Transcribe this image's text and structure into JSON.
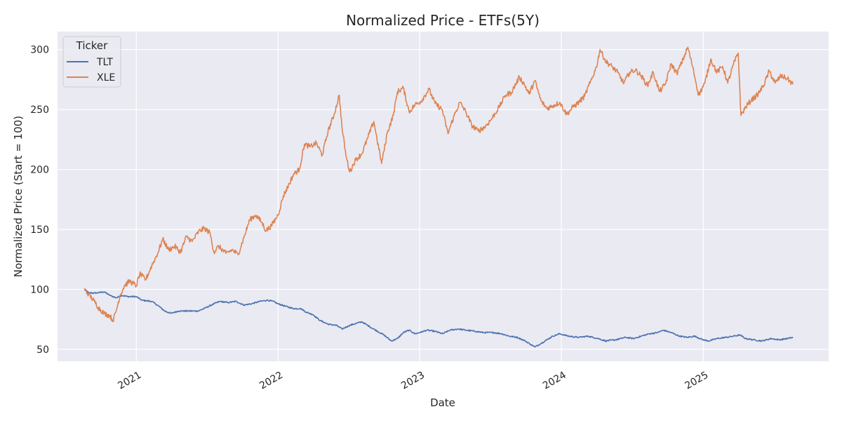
{
  "chart_data": {
    "type": "line",
    "title": "Normalized Price - ETFs(5Y)",
    "xlabel": "Date",
    "ylabel": "Normalized Price (Start = 100)",
    "xlim": [
      "2020-06-12",
      "2025-11-20"
    ],
    "ylim": [
      40,
      315
    ],
    "x_ticks": [
      "2021-01-01",
      "2022-01-01",
      "2023-01-01",
      "2024-01-01",
      "2025-01-01"
    ],
    "x_tick_labels": [
      "2021",
      "2022",
      "2023",
      "2024",
      "2025"
    ],
    "y_ticks": [
      50,
      100,
      150,
      200,
      250,
      300
    ],
    "y_tick_labels": [
      "50",
      "100",
      "150",
      "200",
      "250",
      "300"
    ],
    "grid": true,
    "legend": {
      "title": "Ticker",
      "placement": "top-left"
    },
    "background_color": "#eaeaf2",
    "series": [
      {
        "name": "TLT",
        "color": "#4c72b0",
        "points": [
          [
            "2020-08-20",
            100
          ],
          [
            "2020-09-01",
            97
          ],
          [
            "2020-09-20",
            97
          ],
          [
            "2020-10-10",
            98
          ],
          [
            "2020-10-25",
            95
          ],
          [
            "2020-11-10",
            93
          ],
          [
            "2020-11-25",
            95
          ],
          [
            "2020-12-10",
            94
          ],
          [
            "2021-01-01",
            94
          ],
          [
            "2021-01-15",
            91
          ],
          [
            "2021-02-10",
            90
          ],
          [
            "2021-02-28",
            86
          ],
          [
            "2021-03-15",
            82
          ],
          [
            "2021-03-31",
            80
          ],
          [
            "2021-04-20",
            82
          ],
          [
            "2021-05-15",
            82
          ],
          [
            "2021-06-10",
            82
          ],
          [
            "2021-07-01",
            85
          ],
          [
            "2021-07-20",
            88
          ],
          [
            "2021-08-05",
            90
          ],
          [
            "2021-08-25",
            89
          ],
          [
            "2021-09-15",
            90
          ],
          [
            "2021-10-05",
            87
          ],
          [
            "2021-10-25",
            88
          ],
          [
            "2021-11-15",
            90
          ],
          [
            "2021-12-05",
            91
          ],
          [
            "2021-12-20",
            90
          ],
          [
            "2022-01-01",
            88
          ],
          [
            "2022-01-20",
            86
          ],
          [
            "2022-02-10",
            84
          ],
          [
            "2022-03-01",
            84
          ],
          [
            "2022-03-15",
            81
          ],
          [
            "2022-04-01",
            79
          ],
          [
            "2022-04-20",
            74
          ],
          [
            "2022-05-10",
            71
          ],
          [
            "2022-06-01",
            70
          ],
          [
            "2022-06-15",
            67
          ],
          [
            "2022-07-05",
            70
          ],
          [
            "2022-07-25",
            72
          ],
          [
            "2022-08-05",
            73
          ],
          [
            "2022-08-25",
            69
          ],
          [
            "2022-09-15",
            65
          ],
          [
            "2022-10-01",
            62
          ],
          [
            "2022-10-20",
            57
          ],
          [
            "2022-11-05",
            59
          ],
          [
            "2022-11-20",
            64
          ],
          [
            "2022-12-05",
            66
          ],
          [
            "2022-12-20",
            63
          ],
          [
            "2023-01-01",
            64
          ],
          [
            "2023-01-20",
            66
          ],
          [
            "2023-02-10",
            65
          ],
          [
            "2023-03-01",
            63
          ],
          [
            "2023-03-20",
            66
          ],
          [
            "2023-04-10",
            67
          ],
          [
            "2023-05-01",
            66
          ],
          [
            "2023-05-25",
            65
          ],
          [
            "2023-06-15",
            64
          ],
          [
            "2023-07-10",
            64
          ],
          [
            "2023-08-01",
            63
          ],
          [
            "2023-08-20",
            61
          ],
          [
            "2023-09-10",
            60
          ],
          [
            "2023-09-30",
            57
          ],
          [
            "2023-10-15",
            54
          ],
          [
            "2023-10-25",
            52
          ],
          [
            "2023-11-10",
            55
          ],
          [
            "2023-11-25",
            58
          ],
          [
            "2023-12-10",
            61
          ],
          [
            "2023-12-28",
            63
          ],
          [
            "2024-01-20",
            61
          ],
          [
            "2024-02-15",
            60
          ],
          [
            "2024-03-10",
            61
          ],
          [
            "2024-04-05",
            59
          ],
          [
            "2024-04-25",
            57
          ],
          [
            "2024-05-20",
            58
          ],
          [
            "2024-06-15",
            60
          ],
          [
            "2024-07-05",
            59
          ],
          [
            "2024-07-25",
            61
          ],
          [
            "2024-08-15",
            63
          ],
          [
            "2024-09-05",
            64
          ],
          [
            "2024-09-20",
            66
          ],
          [
            "2024-10-10",
            64
          ],
          [
            "2024-11-01",
            61
          ],
          [
            "2024-11-20",
            60
          ],
          [
            "2024-12-10",
            61
          ],
          [
            "2024-12-31",
            58
          ],
          [
            "2025-01-15",
            57
          ],
          [
            "2025-02-05",
            59
          ],
          [
            "2025-02-28",
            60
          ],
          [
            "2025-03-20",
            61
          ],
          [
            "2025-04-05",
            62
          ],
          [
            "2025-04-20",
            59
          ],
          [
            "2025-05-10",
            58
          ],
          [
            "2025-06-01",
            57
          ],
          [
            "2025-06-25",
            59
          ],
          [
            "2025-07-15",
            58
          ],
          [
            "2025-08-05",
            59
          ],
          [
            "2025-08-20",
            60
          ]
        ]
      },
      {
        "name": "XLE",
        "color": "#dd8452",
        "points": [
          [
            "2020-08-20",
            100
          ],
          [
            "2020-08-31",
            96
          ],
          [
            "2020-09-15",
            90
          ],
          [
            "2020-09-25",
            85
          ],
          [
            "2020-10-10",
            80
          ],
          [
            "2020-10-25",
            78
          ],
          [
            "2020-11-02",
            74
          ],
          [
            "2020-11-10",
            82
          ],
          [
            "2020-11-20",
            95
          ],
          [
            "2020-12-01",
            103
          ],
          [
            "2020-12-15",
            107
          ],
          [
            "2021-01-01",
            103
          ],
          [
            "2021-01-10",
            113
          ],
          [
            "2021-01-25",
            108
          ],
          [
            "2021-02-10",
            120
          ],
          [
            "2021-02-25",
            130
          ],
          [
            "2021-03-10",
            142
          ],
          [
            "2021-03-25",
            133
          ],
          [
            "2021-04-10",
            136
          ],
          [
            "2021-04-25",
            131
          ],
          [
            "2021-05-10",
            144
          ],
          [
            "2021-05-25",
            140
          ],
          [
            "2021-06-10",
            148
          ],
          [
            "2021-06-25",
            151
          ],
          [
            "2021-07-10",
            147
          ],
          [
            "2021-07-20",
            131
          ],
          [
            "2021-08-01",
            136
          ],
          [
            "2021-08-20",
            130
          ],
          [
            "2021-09-05",
            133
          ],
          [
            "2021-09-20",
            129
          ],
          [
            "2021-10-05",
            143
          ],
          [
            "2021-10-20",
            158
          ],
          [
            "2021-11-05",
            162
          ],
          [
            "2021-11-20",
            156
          ],
          [
            "2021-12-01",
            149
          ],
          [
            "2021-12-15",
            153
          ],
          [
            "2022-01-01",
            162
          ],
          [
            "2022-01-15",
            178
          ],
          [
            "2022-01-30",
            188
          ],
          [
            "2022-02-10",
            196
          ],
          [
            "2022-02-25",
            200
          ],
          [
            "2022-03-10",
            221
          ],
          [
            "2022-03-25",
            219
          ],
          [
            "2022-04-10",
            222
          ],
          [
            "2022-04-25",
            212
          ],
          [
            "2022-05-10",
            232
          ],
          [
            "2022-05-25",
            245
          ],
          [
            "2022-06-08",
            262
          ],
          [
            "2022-06-15",
            235
          ],
          [
            "2022-06-25",
            212
          ],
          [
            "2022-07-05",
            198
          ],
          [
            "2022-07-20",
            208
          ],
          [
            "2022-08-05",
            213
          ],
          [
            "2022-08-20",
            226
          ],
          [
            "2022-09-05",
            240
          ],
          [
            "2022-09-25",
            205
          ],
          [
            "2022-10-10",
            231
          ],
          [
            "2022-10-25",
            245
          ],
          [
            "2022-11-05",
            265
          ],
          [
            "2022-11-20",
            268
          ],
          [
            "2022-12-05",
            248
          ],
          [
            "2022-12-20",
            254
          ],
          [
            "2023-01-05",
            257
          ],
          [
            "2023-01-25",
            267
          ],
          [
            "2023-02-10",
            255
          ],
          [
            "2023-02-28",
            250
          ],
          [
            "2023-03-15",
            230
          ],
          [
            "2023-03-31",
            245
          ],
          [
            "2023-04-15",
            256
          ],
          [
            "2023-04-30",
            248
          ],
          [
            "2023-05-15",
            237
          ],
          [
            "2023-06-01",
            232
          ],
          [
            "2023-06-20",
            236
          ],
          [
            "2023-07-05",
            242
          ],
          [
            "2023-07-25",
            252
          ],
          [
            "2023-08-10",
            262
          ],
          [
            "2023-08-25",
            264
          ],
          [
            "2023-09-15",
            277
          ],
          [
            "2023-09-28",
            271
          ],
          [
            "2023-10-10",
            263
          ],
          [
            "2023-10-25",
            274
          ],
          [
            "2023-11-10",
            257
          ],
          [
            "2023-11-25",
            251
          ],
          [
            "2023-12-10",
            253
          ],
          [
            "2023-12-28",
            256
          ],
          [
            "2024-01-15",
            246
          ],
          [
            "2024-01-31",
            252
          ],
          [
            "2024-02-15",
            256
          ],
          [
            "2024-03-01",
            261
          ],
          [
            "2024-03-15",
            272
          ],
          [
            "2024-03-31",
            285
          ],
          [
            "2024-04-10",
            300
          ],
          [
            "2024-04-25",
            290
          ],
          [
            "2024-05-10",
            286
          ],
          [
            "2024-05-25",
            281
          ],
          [
            "2024-06-10",
            272
          ],
          [
            "2024-06-25",
            281
          ],
          [
            "2024-07-10",
            283
          ],
          [
            "2024-07-25",
            278
          ],
          [
            "2024-08-10",
            270
          ],
          [
            "2024-08-25",
            281
          ],
          [
            "2024-09-10",
            265
          ],
          [
            "2024-09-25",
            271
          ],
          [
            "2024-10-10",
            288
          ],
          [
            "2024-10-25",
            280
          ],
          [
            "2024-11-10",
            292
          ],
          [
            "2024-11-22",
            302
          ],
          [
            "2024-12-05",
            285
          ],
          [
            "2024-12-20",
            262
          ],
          [
            "2025-01-05",
            272
          ],
          [
            "2025-01-20",
            292
          ],
          [
            "2025-02-05",
            281
          ],
          [
            "2025-02-20",
            286
          ],
          [
            "2025-03-05",
            272
          ],
          [
            "2025-03-20",
            288
          ],
          [
            "2025-04-01",
            297
          ],
          [
            "2025-04-08",
            245
          ],
          [
            "2025-04-20",
            252
          ],
          [
            "2025-05-05",
            258
          ],
          [
            "2025-05-20",
            262
          ],
          [
            "2025-06-05",
            270
          ],
          [
            "2025-06-20",
            282
          ],
          [
            "2025-07-05",
            272
          ],
          [
            "2025-07-20",
            278
          ],
          [
            "2025-08-05",
            276
          ],
          [
            "2025-08-20",
            271
          ]
        ]
      }
    ]
  }
}
